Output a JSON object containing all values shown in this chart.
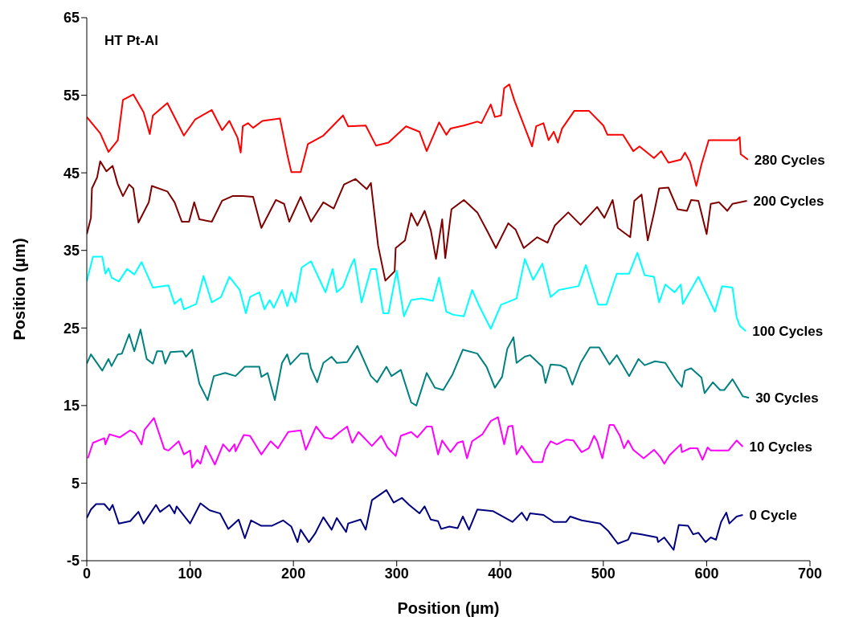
{
  "chart_data": {
    "type": "line",
    "title": "HT Pt-Al",
    "xlabel": "Position (µm)",
    "ylabel": "Position (µm)",
    "xlim": [
      0,
      700
    ],
    "xticks": [
      0,
      100,
      200,
      300,
      400,
      500,
      600,
      700
    ],
    "ylim": [
      -5,
      65
    ],
    "yticks": [
      -5,
      5,
      15,
      25,
      35,
      45,
      55,
      65
    ],
    "series": [
      {
        "name": "280 Cycles",
        "color": "#ff0000",
        "x": [
          0,
          13,
          21,
          30,
          35,
          45,
          55,
          61,
          64,
          78,
          94,
          105,
          121,
          131,
          138,
          146,
          149,
          151,
          156,
          161,
          170,
          187,
          194,
          198,
          207,
          214,
          229,
          248,
          253,
          270,
          280,
          292,
          309,
          322,
          329,
          341,
          348,
          352,
          365,
          378,
          382,
          391,
          395,
          401,
          404,
          409,
          414,
          431,
          435,
          442,
          447,
          452,
          456,
          460,
          472,
          486,
          500,
          504,
          519,
          529,
          535,
          549,
          556,
          563,
          575,
          579,
          584,
          590,
          595,
          602,
          629,
          632,
          633,
          640
        ],
        "values": [
          52.2,
          50.1,
          47.7,
          49.2,
          54.4,
          55.1,
          52.8,
          50,
          52.4,
          54,
          49.8,
          51.9,
          53.1,
          50.5,
          51.7,
          49.5,
          47.6,
          51,
          51.4,
          50.8,
          51.7,
          52,
          47.4,
          45.1,
          45.1,
          48.7,
          49.8,
          52.4,
          51,
          51.1,
          48.5,
          48.9,
          51,
          50.3,
          47.8,
          51.5,
          49.9,
          50.7,
          51.1,
          51.6,
          51.4,
          53.8,
          52.2,
          52.4,
          55.9,
          56.4,
          54.3,
          48.4,
          51,
          51.4,
          49.2,
          50.3,
          48.9,
          50.7,
          53,
          53,
          51.1,
          49.9,
          49.9,
          47.8,
          48.4,
          46.9,
          47.8,
          46.3,
          46.7,
          47.6,
          46.4,
          43.3,
          46.1,
          49.2,
          49.2,
          49.6,
          47.4,
          46.7
        ]
      },
      {
        "name": "200 Cycles",
        "color": "#800000",
        "x": [
          0,
          4,
          5,
          10,
          13,
          19,
          25,
          30,
          35,
          41,
          45,
          50,
          60,
          63,
          78,
          85,
          92,
          99,
          104,
          109,
          121,
          131,
          141,
          151,
          161,
          169,
          183,
          191,
          196,
          207,
          217,
          229,
          239,
          249,
          260,
          271,
          275,
          282,
          289,
          298,
          299,
          308,
          314,
          320,
          327,
          333,
          338,
          344,
          347,
          353,
          365,
          378,
          388,
          396,
          408,
          415,
          423,
          436,
          446,
          453,
          466,
          478,
          494,
          501,
          509,
          514,
          526,
          530,
          537,
          543,
          549,
          554,
          563,
          572,
          581,
          585,
          592,
          600,
          604,
          612,
          620,
          625,
          639
        ],
        "values": [
          37.1,
          39.2,
          43,
          44.4,
          46.5,
          45.2,
          45.9,
          43.5,
          42,
          43.5,
          43,
          38.6,
          41.2,
          43.3,
          42.6,
          41.2,
          38.7,
          38.7,
          41.2,
          39,
          38.7,
          41.4,
          42,
          42,
          41.9,
          37.9,
          41.5,
          41,
          38.7,
          41.9,
          38.7,
          41.2,
          40.4,
          43.5,
          44.2,
          42.9,
          43.7,
          35.6,
          31.1,
          32.3,
          35.3,
          36.3,
          39.8,
          38.2,
          40.1,
          37.6,
          33.9,
          39,
          34,
          40.3,
          41.5,
          39.9,
          37.4,
          35.3,
          38.5,
          37.7,
          35.3,
          36.7,
          36,
          38.2,
          39.9,
          38.3,
          40.6,
          39.2,
          41.5,
          37.9,
          36.7,
          41.4,
          42.2,
          36.3,
          39.8,
          43,
          43.1,
          40.3,
          40.1,
          41.5,
          41.4,
          37.1,
          41,
          41.2,
          40.1,
          41,
          41.4
        ]
      },
      {
        "name": "100 Cycles",
        "color": "#00ffff",
        "x": [
          0,
          6,
          15,
          18,
          21,
          24,
          31,
          39,
          46,
          53,
          64,
          79,
          85,
          91,
          94,
          106,
          113,
          121,
          130,
          138,
          148,
          154,
          158,
          167,
          172,
          177,
          181,
          189,
          194,
          198,
          202,
          208,
          217,
          231,
          238,
          242,
          248,
          256,
          259,
          266,
          275,
          280,
          287,
          292,
          300,
          307,
          314,
          324,
          335,
          341,
          348,
          355,
          365,
          373,
          380,
          391,
          401,
          416,
          424,
          432,
          441,
          449,
          457,
          476,
          483,
          495,
          503,
          513,
          525,
          533,
          540,
          549,
          554,
          560,
          569,
          575,
          577,
          592,
          608,
          615,
          625,
          629,
          632,
          638
        ],
        "values": [
          31,
          34.2,
          34.2,
          32,
          32.7,
          31.5,
          31,
          32.6,
          31.9,
          33.5,
          30.2,
          30.5,
          28.1,
          28.8,
          27.4,
          28.1,
          31.7,
          28.3,
          29,
          31.6,
          29.9,
          26.9,
          29,
          29.6,
          27.4,
          28.6,
          27.6,
          29.9,
          27.8,
          29.6,
          28.3,
          32.8,
          33.6,
          29.6,
          32.6,
          29.6,
          30.3,
          33.1,
          33.9,
          28.3,
          32.6,
          32.6,
          26.9,
          26.9,
          32.4,
          26.5,
          28.6,
          28.8,
          28.5,
          31.5,
          27.1,
          26.7,
          26.5,
          29.9,
          27.8,
          24.9,
          28,
          28.8,
          33.9,
          31.2,
          33.3,
          29,
          29.9,
          30.4,
          33.1,
          28,
          28,
          32,
          32,
          34.7,
          31.8,
          31.6,
          28.3,
          30.6,
          29.6,
          30.6,
          28.1,
          31.6,
          27.1,
          30.4,
          30.2,
          26.4,
          25.3,
          24.6
        ]
      },
      {
        "name": "30 Cycles",
        "color": "#008080",
        "x": [
          0,
          4,
          15,
          21,
          24,
          30,
          34,
          41,
          46,
          52,
          58,
          64,
          68,
          73,
          76,
          81,
          93,
          96,
          102,
          109,
          117,
          123,
          134,
          144,
          153,
          167,
          169,
          175,
          182,
          189,
          194,
          197,
          207,
          214,
          217,
          223,
          229,
          237,
          242,
          252,
          262,
          275,
          281,
          290,
          295,
          304,
          314,
          319,
          329,
          337,
          345,
          354,
          364,
          378,
          387,
          395,
          402,
          407,
          413,
          416,
          424,
          429,
          441,
          444,
          449,
          458,
          464,
          470,
          478,
          487,
          496,
          506,
          513,
          525,
          534,
          540,
          550,
          560,
          571,
          576,
          579,
          585,
          595,
          598,
          606,
          613,
          617,
          625,
          635,
          641
        ],
        "values": [
          20.4,
          21.6,
          19.5,
          21,
          20.1,
          21.6,
          21.7,
          24.2,
          22,
          24.8,
          21,
          20.4,
          22,
          22,
          20.4,
          21.9,
          22,
          21.3,
          22.2,
          17.8,
          15.7,
          18.8,
          19.2,
          18.8,
          20,
          20,
          18.7,
          19.2,
          15.7,
          20.5,
          21.6,
          20.3,
          21.7,
          21.7,
          19.8,
          18,
          20.5,
          21.3,
          20.5,
          20.6,
          22.7,
          18.8,
          18,
          20,
          18.8,
          19.6,
          15.4,
          15,
          19.2,
          17.3,
          17,
          19,
          22.2,
          21.7,
          20,
          17.3,
          18.7,
          22.3,
          23.8,
          20.5,
          21.3,
          21.5,
          20,
          17.9,
          20.3,
          20.2,
          19.8,
          17.7,
          20.5,
          22.5,
          22.5,
          20.3,
          21.5,
          18.8,
          21,
          20.2,
          20.7,
          20.5,
          18.2,
          17.4,
          19.5,
          19.8,
          18.6,
          16.6,
          18,
          17,
          17,
          18.4,
          16.2,
          16
        ]
      },
      {
        "name": "10 Cycles",
        "color": "#ff00ff",
        "x": [
          1,
          6,
          17,
          18,
          22,
          32,
          42,
          47,
          53,
          56,
          65,
          75,
          79,
          89,
          94,
          100,
          102,
          107,
          110,
          115,
          124,
          132,
          138,
          143,
          144,
          152,
          158,
          169,
          178,
          185,
          195,
          207,
          212,
          218,
          222,
          230,
          237,
          245,
          252,
          257,
          263,
          276,
          285,
          291,
          299,
          304,
          314,
          320,
          329,
          334,
          340,
          344,
          352,
          359,
          364,
          368,
          373,
          383,
          391,
          398,
          404,
          408,
          412,
          416,
          421,
          432,
          441,
          444,
          449,
          455,
          464,
          471,
          479,
          486,
          491,
          494,
          499,
          506,
          510,
          516,
          520,
          524,
          529,
          539,
          549,
          555,
          559,
          564,
          575,
          576,
          584,
          591,
          596,
          601,
          604,
          621,
          629,
          635
        ],
        "values": [
          8.2,
          10.2,
          10.8,
          10,
          11.3,
          10.9,
          11.8,
          11.4,
          10,
          11.9,
          13.4,
          9.4,
          9.2,
          10.4,
          8.7,
          9.2,
          7,
          8,
          7.5,
          9.8,
          7.4,
          10,
          9.1,
          10,
          9.1,
          11.2,
          11.1,
          8.7,
          10.4,
          9.5,
          11.6,
          11.8,
          9.3,
          11.1,
          12.3,
          10.9,
          10.7,
          11.6,
          12.3,
          10.2,
          11.6,
          9.8,
          11.1,
          9.6,
          8.5,
          11.1,
          11.6,
          10.9,
          12.3,
          12.3,
          8.7,
          10.5,
          9,
          10.2,
          10.4,
          8.2,
          10.4,
          11.3,
          13,
          13.5,
          10,
          12.3,
          12.4,
          8.7,
          9.8,
          7.7,
          7.7,
          9.3,
          10.4,
          10,
          10.6,
          10.5,
          9,
          9.5,
          11.1,
          10.4,
          8.2,
          12.5,
          12.5,
          11.1,
          9.5,
          10.5,
          9.3,
          8.2,
          9.3,
          8.4,
          7.5,
          8.6,
          10,
          9,
          9.5,
          9.5,
          8,
          9.6,
          9.2,
          9.2,
          10.5,
          9.7
        ]
      },
      {
        "name": "0 Cycle",
        "color": "#000080",
        "x": [
          0,
          4,
          9,
          17,
          22,
          25,
          31,
          42,
          50,
          55,
          67,
          71,
          80,
          85,
          87,
          100,
          110,
          119,
          129,
          137,
          147,
          153,
          159,
          169,
          179,
          190,
          198,
          204,
          207,
          215,
          221,
          229,
          237,
          242,
          251,
          253,
          265,
          270,
          276,
          290,
          297,
          305,
          312,
          322,
          327,
          333,
          340,
          343,
          351,
          359,
          364,
          370,
          378,
          393,
          412,
          421,
          426,
          429,
          442,
          452,
          464,
          468,
          479,
          497,
          505,
          514,
          524,
          527,
          537,
          552,
          553,
          559,
          568,
          573,
          582,
          587,
          592,
          599,
          604,
          609,
          614,
          619,
          622,
          629,
          635
        ],
        "values": [
          0.5,
          1.6,
          2.3,
          2.3,
          1.5,
          2.2,
          -0.2,
          0.1,
          1.3,
          -0.2,
          2.2,
          1.3,
          2.2,
          1.1,
          2,
          -0.2,
          2.4,
          1.5,
          1.1,
          -0.9,
          0.3,
          -2.1,
          0.2,
          -0.5,
          -0.5,
          0.2,
          -0.6,
          -2.6,
          -1,
          -2.6,
          -1.5,
          0.6,
          -1,
          0.5,
          -1.3,
          -0.2,
          0.3,
          -1,
          2.8,
          4.1,
          2.5,
          3.1,
          2.2,
          1.1,
          2,
          0.3,
          0.1,
          -0.9,
          -0.6,
          -0.8,
          0.7,
          -1,
          1.6,
          1.4,
          0,
          1.2,
          0.2,
          1.1,
          0.9,
          0,
          0,
          0.7,
          0.2,
          -0.2,
          -1.2,
          -2.8,
          -2.3,
          -1.4,
          -1.6,
          -2,
          -2.6,
          -2,
          -3.6,
          -0.4,
          -0.5,
          -1.6,
          -1.4,
          -2.6,
          -2,
          -2.3,
          0,
          1.2,
          -0.2,
          0.7,
          0.9
        ]
      }
    ]
  }
}
